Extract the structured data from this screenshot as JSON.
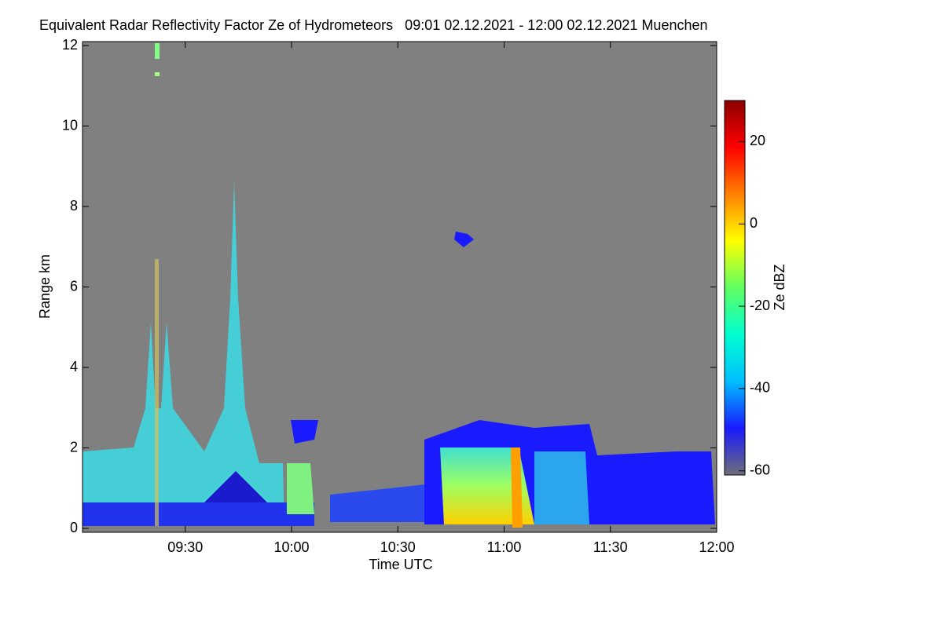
{
  "chart_data": {
    "type": "heatmap",
    "title": "Equivalent Radar Reflectivity Factor Ze of Hydrometeors   09:01 02.12.2021 - 12:00 02.12.2021 Muenchen",
    "x_label": "Time UTC",
    "y_label": "Range km",
    "colorbar_label": "Ze dBZ",
    "xlim": [
      541,
      720
    ],
    "xticks": [
      {
        "value": 570,
        "label": "09:30"
      },
      {
        "value": 600,
        "label": "10:00"
      },
      {
        "value": 630,
        "label": "10:30"
      },
      {
        "value": 660,
        "label": "11:00"
      },
      {
        "value": 690,
        "label": "11:30"
      },
      {
        "value": 720,
        "label": "12:00"
      }
    ],
    "ylim": [
      0,
      12
    ],
    "yticks": [
      0,
      2,
      4,
      6,
      8,
      10,
      12
    ],
    "clim": [
      -61,
      30
    ],
    "cticks": [
      20,
      0,
      -20,
      -40,
      -60
    ],
    "colormap": [
      "#6e6e78",
      "#1a1aff",
      "#00bfff",
      "#00ffd0",
      "#60ff60",
      "#ffff00",
      "#ff8000",
      "#ff0000",
      "#8b0000"
    ]
  }
}
